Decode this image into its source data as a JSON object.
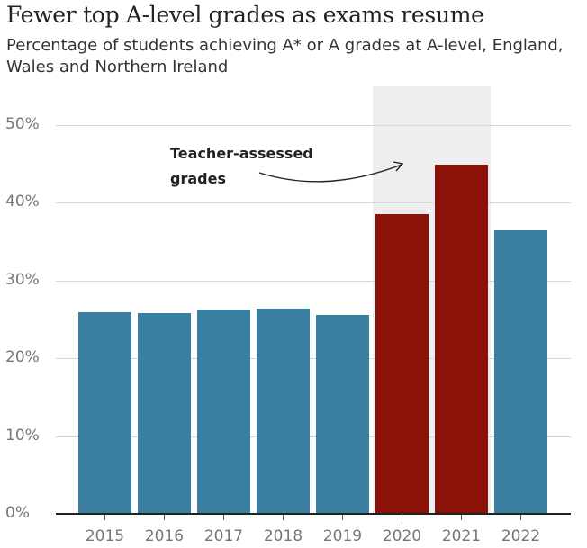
{
  "title": "Fewer top A-level grades as exams resume",
  "subtitle": "Percentage of students achieving A* or A grades at A-level, England, Wales and Northern Ireland",
  "annotation": "Teacher-assessed\ngrades",
  "colors": {
    "exam": "#3a7fa0",
    "teacher": "#8b1208",
    "shade": "#eeeef1"
  },
  "y_ticks": [
    "0%",
    "10%",
    "20%",
    "30%",
    "40%",
    "50%"
  ],
  "chart_data": {
    "type": "bar",
    "title": "Fewer top A-level grades as exams resume",
    "subtitle": "Percentage of students achieving A* or A grades at A-level, England, Wales and Northern Ireland",
    "categories": [
      "2015",
      "2016",
      "2017",
      "2018",
      "2019",
      "2020",
      "2021",
      "2022"
    ],
    "values": [
      25.9,
      25.8,
      26.3,
      26.4,
      25.5,
      38.5,
      44.8,
      36.4
    ],
    "bar_groups": [
      "exam",
      "exam",
      "exam",
      "exam",
      "exam",
      "teacher",
      "teacher",
      "exam"
    ],
    "xlabel": "",
    "ylabel": "",
    "ylim": [
      0,
      50
    ],
    "y_ticks": [
      0,
      10,
      20,
      30,
      40,
      50
    ],
    "grid": true,
    "highlight_region": [
      "2020",
      "2021"
    ],
    "annotations": [
      {
        "text": "Teacher-assessed grades",
        "points_to": "2020-2021"
      }
    ]
  }
}
